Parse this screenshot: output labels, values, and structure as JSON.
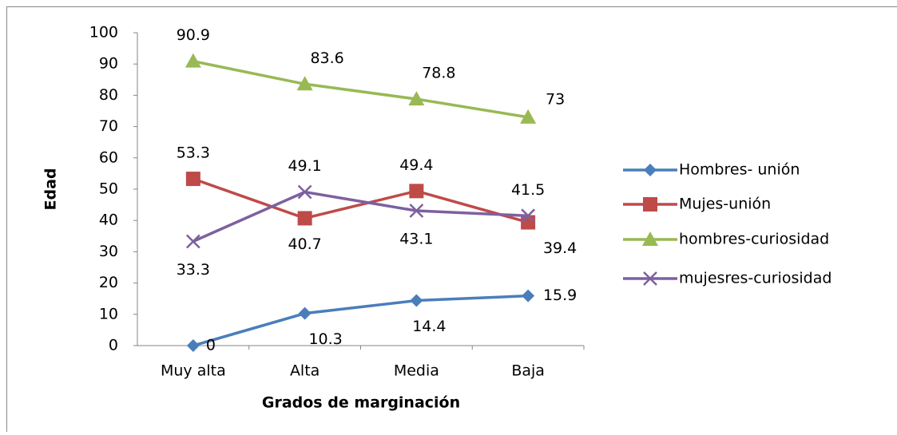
{
  "chart_data": {
    "type": "line",
    "categories": [
      "Muy alta",
      "Alta",
      "Media",
      "Baja"
    ],
    "x_label": "Grados de marginación",
    "y_label": "Edad",
    "ylim": [
      0,
      100
    ],
    "yticks": [
      0,
      10,
      20,
      30,
      40,
      50,
      60,
      70,
      80,
      90,
      100
    ],
    "series": [
      {
        "name": "Hombres- unión",
        "color": "#4a7ebb",
        "marker": "diamond",
        "values": [
          0,
          10.3,
          14.4,
          15.9
        ]
      },
      {
        "name": "Mujes-unión",
        "color": "#be4b48",
        "marker": "square",
        "values": [
          53.3,
          40.7,
          49.4,
          39.4
        ]
      },
      {
        "name": "hombres-curiosidad",
        "color": "#98b954",
        "marker": "triangle",
        "values": [
          90.9,
          83.6,
          78.8,
          73
        ]
      },
      {
        "name": "mujesres-curiosidad",
        "color": "#7d60a0",
        "marker": "x",
        "values": [
          33.3,
          49.1,
          43.1,
          41.5
        ]
      }
    ]
  }
}
